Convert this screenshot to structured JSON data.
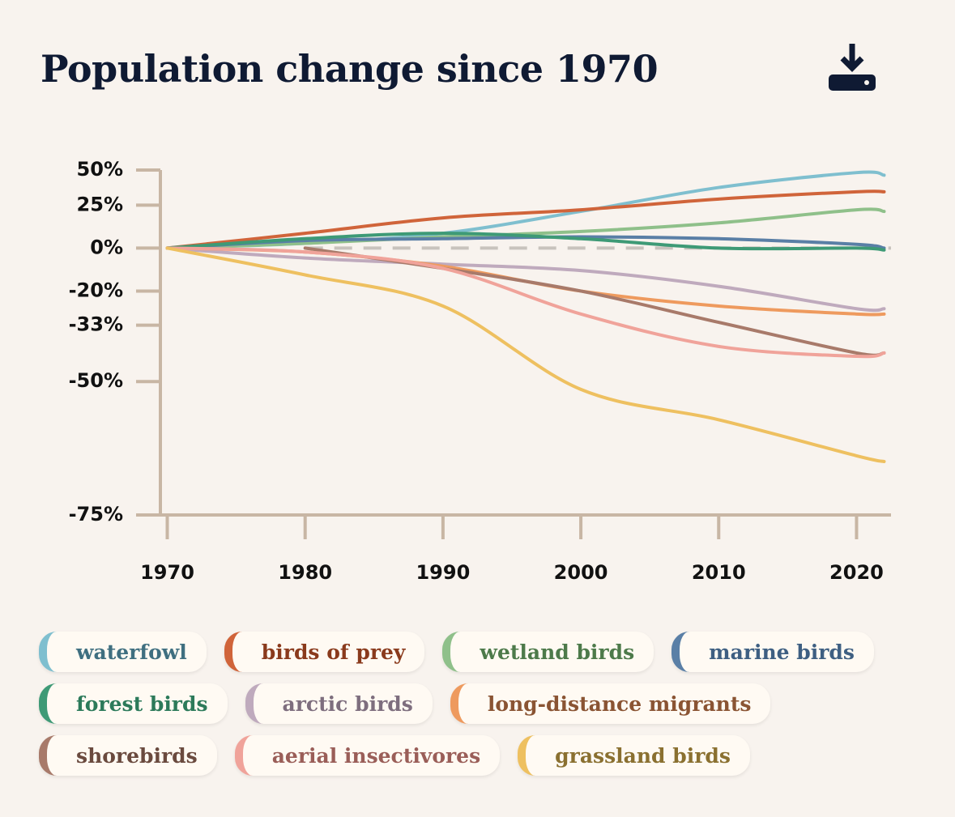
{
  "title": "Population change since 1970",
  "chart_data": {
    "type": "line",
    "yscale": "log-ratio",
    "x": [
      1970,
      1980,
      1990,
      2000,
      2010,
      2020,
      2022
    ],
    "xlim": [
      1969.5,
      2022.5
    ],
    "xticks": [
      1970,
      1980,
      1990,
      2000,
      2010,
      2020
    ],
    "ylim": [
      -75,
      50
    ],
    "yticks": [
      {
        "value": 50,
        "label": "50%"
      },
      {
        "value": 25,
        "label": "25%"
      },
      {
        "value": 0,
        "label": "0%"
      },
      {
        "value": -20,
        "label": "-20%"
      },
      {
        "value": -33,
        "label": "-33%"
      },
      {
        "value": -50,
        "label": "-50%"
      },
      {
        "value": -75,
        "label": "-75%"
      }
    ],
    "series": [
      {
        "name": "waterfowl",
        "color": "#7fbfcf",
        "text_color": "#3f6f80",
        "values": [
          0,
          2.5,
          8,
          21,
          37,
          48,
          46
        ]
      },
      {
        "name": "birds of prey",
        "color": "#d0643a",
        "text_color": "#8a3a1c",
        "values": [
          0,
          8,
          17,
          22,
          29,
          34,
          34
        ]
      },
      {
        "name": "wetland birds",
        "color": "#8fc08a",
        "text_color": "#4d7a4a",
        "values": [
          0,
          2.5,
          6,
          9,
          14,
          22,
          21
        ]
      },
      {
        "name": "marine birds",
        "color": "#5a7fa6",
        "text_color": "#3e5f82",
        "values": [
          0,
          4,
          5,
          6,
          5,
          2,
          0
        ]
      },
      {
        "name": "forest birds",
        "color": "#3e9a76",
        "text_color": "#2c7a5a",
        "values": [
          0,
          5,
          8,
          5,
          0,
          0,
          -1
        ]
      },
      {
        "name": "arctic birds",
        "color": "#bfaabd",
        "text_color": "#7e6e7e",
        "values": [
          0,
          -5,
          -8,
          -11,
          -18,
          -27,
          -27
        ]
      },
      {
        "name": "long-distance migrants",
        "color": "#ee9a5e",
        "text_color": "#8a5433",
        "values": [
          0,
          -2,
          -9,
          -20,
          -26,
          -29,
          -29
        ]
      },
      {
        "name": "shorebirds",
        "color": "#a87a6a",
        "text_color": "#6a4a3e",
        "values": [
          null,
          0,
          -10,
          -20,
          -32,
          -42,
          -42
        ]
      },
      {
        "name": "aerial insectivores",
        "color": "#f0a39a",
        "text_color": "#9a5e58",
        "values": [
          0,
          -2,
          -10,
          -29,
          -40,
          -43,
          -42
        ]
      },
      {
        "name": "grassland birds",
        "color": "#eec060",
        "text_color": "#8a7030",
        "values": [
          0,
          -13,
          -26,
          -52,
          -59,
          -66,
          -67
        ]
      }
    ]
  }
}
